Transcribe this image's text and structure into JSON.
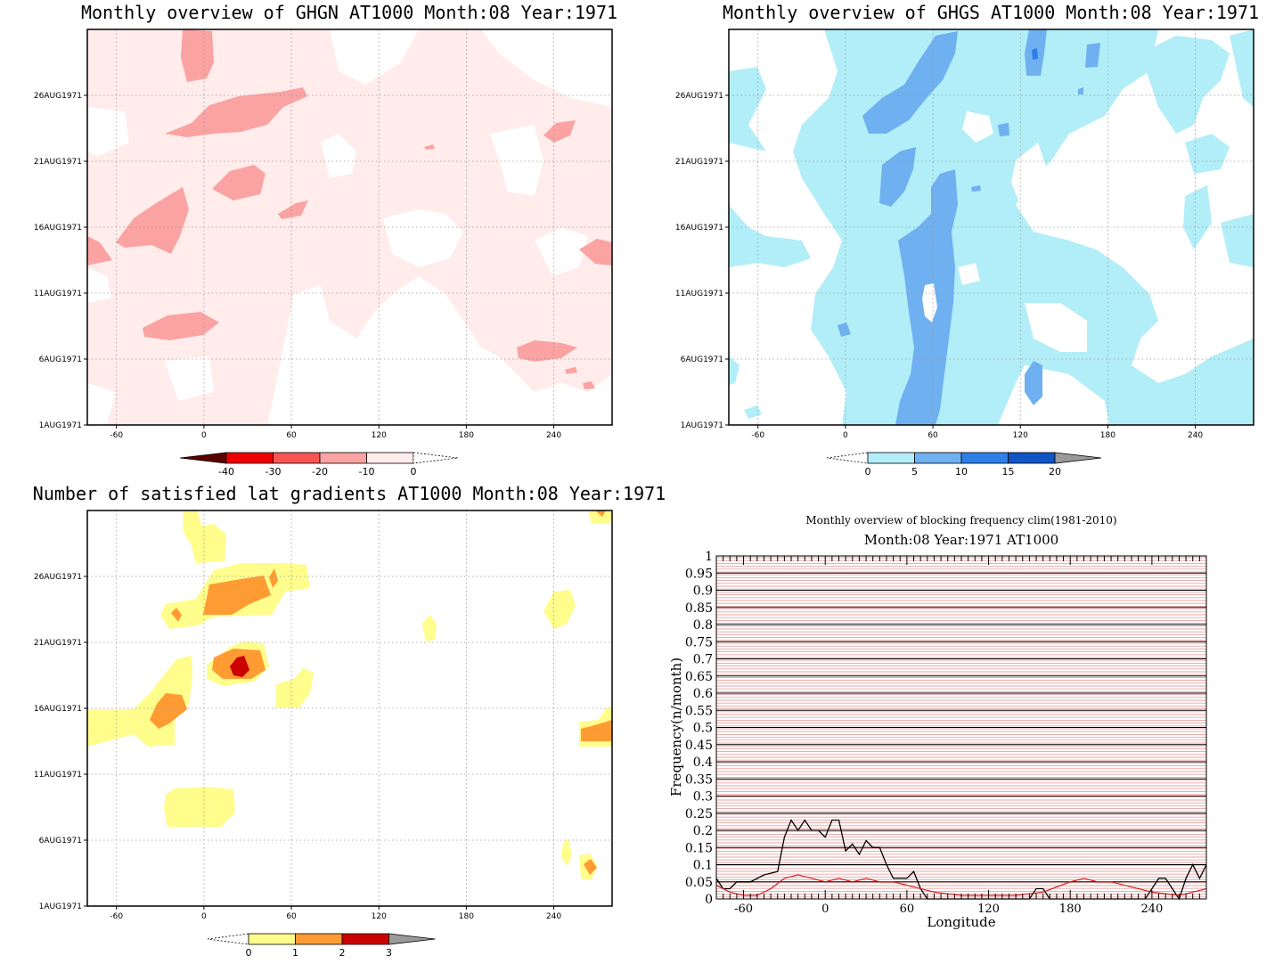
{
  "colors": {
    "pink_bg": "#ffeceb",
    "pink": "#fba2a2",
    "light_blue": "#b2eef8",
    "mid_blue": "#6fb0f1",
    "deep_blue": "#2f7fe8",
    "yellow": "#fffd8c",
    "orange": "#ff9b33",
    "red": "#cc0000",
    "freq_black": "#000000",
    "freq_red": "#dd1111",
    "hatch_red": "#e9a3a3"
  },
  "chart_data": [
    {
      "id": "ghgn",
      "type": "heatmap",
      "title": "Monthly overview of GHGN AT1000 Month:08 Year:1971",
      "x_ticks": [
        "-60",
        "0",
        "60",
        "120",
        "180",
        "240"
      ],
      "y_ticks": [
        "1AUG1971",
        "6AUG1971",
        "11AUG1971",
        "16AUG1971",
        "21AUG1971",
        "26AUG1971"
      ],
      "xlim": [
        -80,
        280
      ],
      "colorbar": {
        "labels": [
          "-40",
          "-30",
          "-20",
          "-10",
          "0"
        ],
        "colors": [
          "#5a0000",
          "#ee0000",
          "#f75555",
          "#fba2a2",
          "#ffeceb"
        ]
      },
      "regions": [
        {
          "level": "-10 to 0",
          "color": "#fba2a2",
          "lon": 0,
          "day": 28.5
        },
        {
          "level": "-10 to 0",
          "color": "#fba2a2",
          "lon": 30,
          "day": 24
        },
        {
          "level": "-10 to 0",
          "color": "#fba2a2",
          "lon": -35,
          "day": 16.5
        },
        {
          "level": "-10 to 0",
          "color": "#fba2a2",
          "lon": 25,
          "day": 19.5
        },
        {
          "level": "-10 to 0",
          "color": "#fba2a2",
          "lon": -15,
          "day": 8.5
        },
        {
          "level": "-10 to 0",
          "color": "#fba2a2",
          "lon": 245,
          "day": 6.5
        }
      ]
    },
    {
      "id": "ghgs",
      "type": "heatmap",
      "title": "Monthly overview of GHGS AT1000 Month:08 Year:1971",
      "x_ticks": [
        "-60",
        "0",
        "60",
        "120",
        "180",
        "240"
      ],
      "y_ticks": [
        "1AUG1971",
        "6AUG1971",
        "11AUG1971",
        "16AUG1971",
        "21AUG1971",
        "26AUG1971"
      ],
      "xlim": [
        -80,
        280
      ],
      "colorbar": {
        "labels": [
          "0",
          "5",
          "10",
          "15",
          "20"
        ],
        "colors": [
          "#b2eef8",
          "#6fb0f1",
          "#2f7fe8",
          "#0f55c8",
          "#9a9a9a"
        ]
      },
      "regions": [
        {
          "level": "5 to 10",
          "color": "#6fb0f1",
          "lon": 40,
          "day": 27
        },
        {
          "level": "5 to 10",
          "color": "#6fb0f1",
          "lon": 55,
          "day": 12
        },
        {
          "level": "5 to 10",
          "color": "#6fb0f1",
          "lon": 25,
          "day": 20
        },
        {
          "level": "5 to 10",
          "color": "#6fb0f1",
          "lon": 140,
          "day": 4
        }
      ]
    },
    {
      "id": "satisfied",
      "type": "heatmap",
      "title": "Number of satisfied lat gradients AT1000 Month:08 Year:1971",
      "x_ticks": [
        "-60",
        "0",
        "60",
        "120",
        "180",
        "240"
      ],
      "y_ticks": [
        "1AUG1971",
        "6AUG1971",
        "11AUG1971",
        "16AUG1971",
        "21AUG1971",
        "26AUG1971"
      ],
      "xlim": [
        -80,
        280
      ],
      "colorbar": {
        "labels": [
          "0",
          "1",
          "2",
          "3"
        ],
        "colors": [
          "#fffd8c",
          "#ff9b33",
          "#cc0000",
          "#9a9a9a"
        ]
      },
      "regions": [
        {
          "level": "1 to 2",
          "color": "#ff9b33",
          "lon": 25,
          "day": 24
        },
        {
          "level": "2 to 3",
          "color": "#cc0000",
          "lon": 25,
          "day": 19.5
        },
        {
          "level": "1 to 2",
          "color": "#ff9b33",
          "lon": -25,
          "day": 15.5
        },
        {
          "level": "1 to 2",
          "color": "#ff9b33",
          "lon": 270,
          "day": 14
        },
        {
          "level": "1 to 2",
          "color": "#ff9b33",
          "lon": 262,
          "day": 3.5
        }
      ]
    },
    {
      "id": "blocking",
      "type": "line",
      "title": "Monthly overview of blocking frequency clim(1981-2010)",
      "subtitle": "Month:08 Year:1971  AT1000",
      "xlabel": "Longitude",
      "ylabel": "Frequency(n/month)",
      "xlim": [
        -80,
        280
      ],
      "ylim": [
        0,
        1
      ],
      "x_ticks": [
        "-60",
        "0",
        "60",
        "120",
        "180",
        "240"
      ],
      "y_ticks": [
        "0",
        "0.05",
        "0.1",
        "0.15",
        "0.2",
        "0.25",
        "0.3",
        "0.35",
        "0.4",
        "0.45",
        "0.5",
        "0.55",
        "0.6",
        "0.65",
        "0.7",
        "0.75",
        "0.8",
        "0.85",
        "0.9",
        "0.95",
        "1"
      ],
      "series": [
        {
          "color": "#000000",
          "x": [
            -80,
            -75,
            -70,
            -65,
            -55,
            -45,
            -35,
            -30,
            -25,
            -20,
            -15,
            -10,
            -5,
            0,
            5,
            10,
            15,
            20,
            25,
            30,
            35,
            40,
            45,
            50,
            55,
            60,
            65,
            70,
            75,
            80,
            150,
            155,
            160,
            165,
            235,
            240,
            245,
            250,
            255,
            260,
            265,
            270,
            275,
            280
          ],
          "y": [
            0.06,
            0.03,
            0.03,
            0.05,
            0.05,
            0.07,
            0.08,
            0.18,
            0.23,
            0.2,
            0.23,
            0.2,
            0.2,
            0.18,
            0.23,
            0.23,
            0.14,
            0.16,
            0.13,
            0.17,
            0.15,
            0.15,
            0.1,
            0.06,
            0.06,
            0.06,
            0.08,
            0.03,
            0.0,
            0.0,
            0.0,
            0.03,
            0.03,
            0.0,
            0.0,
            0.03,
            0.06,
            0.06,
            0.03,
            0.0,
            0.06,
            0.1,
            0.06,
            0.1
          ]
        },
        {
          "color": "#dd1111",
          "x": [
            -80,
            -70,
            -60,
            -50,
            -40,
            -30,
            -20,
            -10,
            0,
            10,
            20,
            30,
            40,
            50,
            60,
            70,
            80,
            100,
            120,
            140,
            160,
            180,
            190,
            200,
            210,
            220,
            240,
            260,
            270,
            280
          ],
          "y": [
            0.04,
            0.02,
            0.01,
            0.01,
            0.03,
            0.06,
            0.07,
            0.06,
            0.05,
            0.06,
            0.05,
            0.06,
            0.05,
            0.05,
            0.04,
            0.03,
            0.02,
            0.01,
            0.01,
            0.01,
            0.02,
            0.05,
            0.06,
            0.05,
            0.05,
            0.04,
            0.02,
            0.01,
            0.02,
            0.03
          ]
        }
      ]
    }
  ]
}
